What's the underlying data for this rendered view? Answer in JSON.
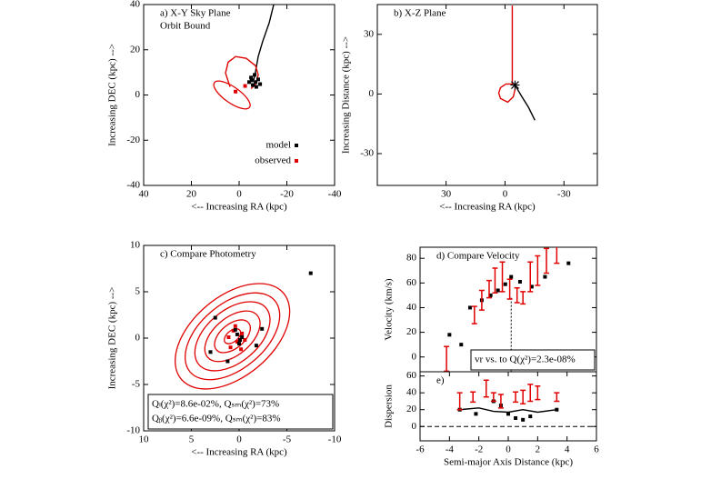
{
  "chart_data": [
    {
      "type": "scatter",
      "title": "a) X-Y Sky Plane",
      "subtitle": "Orbit Bound",
      "xlabel": "<-- Increasing RA (kpc)",
      "ylabel": "Increasing DEC (kpc) -->",
      "xlim": [
        40,
        -40
      ],
      "ylim": [
        -40,
        40
      ],
      "xticks": [
        40,
        20,
        0,
        -20,
        -40
      ],
      "yticks": [
        40,
        20,
        0,
        -20,
        -40
      ],
      "legend": "lower right",
      "series": [
        {
          "color": "#000000",
          "style": "line",
          "x": [
            -14.5,
            -12.6,
            -9.9,
            -8.0,
            -6.9,
            -6.1
          ],
          "y": [
            40,
            31.9,
            23.8,
            17,
            10.5,
            6.5
          ]
        },
        {
          "color": "#e00000",
          "style": "line",
          "x": [
            3.8,
            5.7,
            4.6,
            1.5,
            -3.0,
            -6.9,
            -8.0,
            -6.9,
            -5.0
          ],
          "y": [
            3.6,
            9.7,
            14.5,
            17,
            16.2,
            12.9,
            8.9,
            4.8,
            2.8
          ]
        },
        {
          "name": "model",
          "color": "#000000",
          "style": "points",
          "x": [
            -5.0,
            -6.9,
            -5.7,
            -8.0,
            -6.5,
            -8.8,
            -4.2,
            -7.2,
            -5.3
          ],
          "y": [
            7.7,
            5.7,
            4.4,
            6.9,
            8.9,
            4.8,
            5.7,
            3.6,
            6.5
          ]
        },
        {
          "name": "observed",
          "color": "#e00000",
          "style": "points",
          "x": [
            1.5,
            -2.5
          ],
          "y": [
            1.5,
            4.0
          ]
        }
      ],
      "ellipses": [
        {
          "cx": 3,
          "cy": 0,
          "rx": 9,
          "ry": 3.5,
          "angle": 35,
          "color": "#e00000"
        }
      ]
    },
    {
      "type": "scatter",
      "title": "b) X-Z Plane",
      "xlabel": "<-- Increasing RA (kpc)",
      "ylabel": "Increasing Distance (kpc) -->",
      "xlim": [
        65,
        -47
      ],
      "ylim": [
        -46,
        45
      ],
      "xticks": [
        30,
        0,
        -30
      ],
      "yticks": [
        30,
        0,
        -30
      ],
      "series": [
        {
          "color": "#e00000",
          "style": "line",
          "x": [
            -3.7,
            -3.7,
            -0.5,
            2.3,
            3.2,
            2.3,
            -1.4,
            -4.2,
            -5.1
          ],
          "y": [
            44.5,
            5,
            5,
            3.2,
            0.5,
            -2.3,
            -4.1,
            -1.4,
            2.3
          ]
        },
        {
          "color": "#000000",
          "style": "line",
          "x": [
            -5.1,
            -8.3,
            -12,
            -15.2
          ],
          "y": [
            4.5,
            -0.9,
            -6.8,
            -13.2
          ]
        },
        {
          "color": "#000000",
          "style": "star",
          "x": [
            -5.1
          ],
          "y": [
            4.5
          ]
        }
      ]
    },
    {
      "type": "scatter",
      "title": "c) Compare Photometry",
      "xlabel": "<-- Increasing RA (kpc)",
      "ylabel": "Increasing DEC (kpc) -->",
      "xlim": [
        10,
        -10
      ],
      "ylim": [
        -10,
        10
      ],
      "xticks": [
        10,
        5,
        0,
        -5,
        -10
      ],
      "yticks": [
        10,
        5,
        0,
        -5,
        -10
      ],
      "annotations": [
        "Qₗ(χ²)=8.6e-02%, Qₛₘ(χ²)=73%",
        "Qᵦ(χ²)=6.6e-09%, Qₛₘ(χ²)=83%"
      ],
      "series": [
        {
          "color": "#e00000",
          "style": "points",
          "x": [
            0.6,
            0.2,
            -0.3,
            0.9,
            -0.6,
            0.4,
            1.1,
            -0.2
          ],
          "y": [
            0.8,
            -0.4,
            0.5,
            -1.0,
            -0.2,
            1.3,
            0.1,
            -1.2
          ]
        },
        {
          "color": "#000000",
          "style": "points",
          "x": [
            0.2,
            -0.1,
            0.4,
            0.0,
            -0.3,
            2.5,
            -1.8,
            1.2,
            -2.4,
            3.0,
            -7.5
          ],
          "y": [
            0.4,
            -0.2,
            0.9,
            -0.6,
            0.1,
            2.2,
            -0.8,
            -2.5,
            1.0,
            -1.5,
            7.0
          ]
        }
      ],
      "ellipses": [
        {
          "cx": 0.7,
          "cy": 0.2,
          "rx": 7.0,
          "ry": 4.3,
          "angle": -40,
          "color": "#e00000"
        },
        {
          "cx": 0.7,
          "cy": 0.2,
          "rx": 5.8,
          "ry": 3.5,
          "angle": -40,
          "color": "#e00000"
        },
        {
          "cx": 0.7,
          "cy": 0.2,
          "rx": 4.6,
          "ry": 2.8,
          "angle": -40,
          "color": "#e00000"
        },
        {
          "cx": 0.7,
          "cy": 0.2,
          "rx": 3.4,
          "ry": 2.0,
          "angle": -40,
          "color": "#e00000"
        },
        {
          "cx": 0.7,
          "cy": 0.2,
          "rx": 2.2,
          "ry": 1.3,
          "angle": -40,
          "color": "#e00000"
        },
        {
          "cx": 0.7,
          "cy": 0.2,
          "rx": 1.0,
          "ry": 0.6,
          "angle": -40,
          "color": "#e00000"
        }
      ]
    },
    {
      "type": "scatter",
      "title": "d) Compare Velocity",
      "ylabel": "Velocity (km/s)",
      "xlim": [
        -6,
        6
      ],
      "ylim": [
        -12,
        89
      ],
      "yticks": [
        80,
        60,
        40,
        20,
        0
      ],
      "annotations": [
        "vr vs. to Q(χ²)=2.3e-08%"
      ],
      "series": [
        {
          "color": "#000000",
          "style": "dotted",
          "x": [
            0.2,
            0.2
          ],
          "y": [
            48,
            -12
          ]
        },
        {
          "color": "#000000",
          "style": "points",
          "x": [
            -4,
            -3.2,
            -2.6,
            -1.8,
            -1.2,
            -0.7,
            -0.2,
            0.2,
            0.8,
            1.6,
            2.5,
            4.1
          ],
          "y": [
            18,
            10,
            40,
            46,
            50,
            54,
            59,
            65,
            61,
            57,
            65,
            76
          ]
        },
        {
          "color": "#e00000",
          "style": "errorbar",
          "x": [
            -4.2,
            -2.3,
            -1.8,
            -1.3,
            -0.9,
            -0.4,
            0.1,
            0.6,
            1.0,
            1.5,
            2.0,
            2.6,
            3.3
          ],
          "y": [
            -1.5,
            34,
            46,
            55,
            62,
            65,
            55,
            50,
            48,
            65,
            70,
            78,
            84
          ],
          "err": [
            10,
            7,
            8,
            7,
            10,
            12,
            8,
            6,
            5,
            12,
            12,
            10,
            8
          ]
        }
      ]
    },
    {
      "type": "scatter",
      "title": "e)",
      "xlabel": "Semi-major Axis Distance (kpc)",
      "ylabel": "Dispersion",
      "xlim": [
        -6,
        6
      ],
      "ylim": [
        -17,
        65
      ],
      "xticks": [
        -6,
        -4,
        -2,
        0,
        2,
        4,
        6
      ],
      "yticks": [
        60,
        40,
        20,
        0
      ],
      "series": [
        {
          "color": "#000000",
          "style": "dashed",
          "x": [
            -6,
            6
          ],
          "y": [
            0,
            0
          ]
        },
        {
          "color": "#000000",
          "style": "line",
          "x": [
            -3.3,
            -2,
            -1,
            0,
            1,
            2,
            3.3
          ],
          "y": [
            20,
            22,
            18,
            17,
            20,
            17,
            20
          ]
        },
        {
          "color": "#000000",
          "style": "points",
          "x": [
            -3.3,
            -2.2,
            -1,
            -0.5,
            0,
            0.5,
            1,
            1.5,
            3.3
          ],
          "y": [
            20,
            15,
            30,
            25,
            15,
            10,
            8,
            12,
            20
          ]
        },
        {
          "color": "#e00000",
          "style": "errorbar",
          "x": [
            -3.3,
            -2.4,
            -1.5,
            -1,
            -0.5,
            0.5,
            1,
            1.5,
            2,
            3.3
          ],
          "y": [
            30,
            35,
            45,
            35,
            30,
            35,
            35,
            40,
            40,
            35
          ],
          "err": [
            10,
            6,
            10,
            5,
            8,
            6,
            8,
            10,
            8,
            5
          ]
        }
      ]
    }
  ]
}
